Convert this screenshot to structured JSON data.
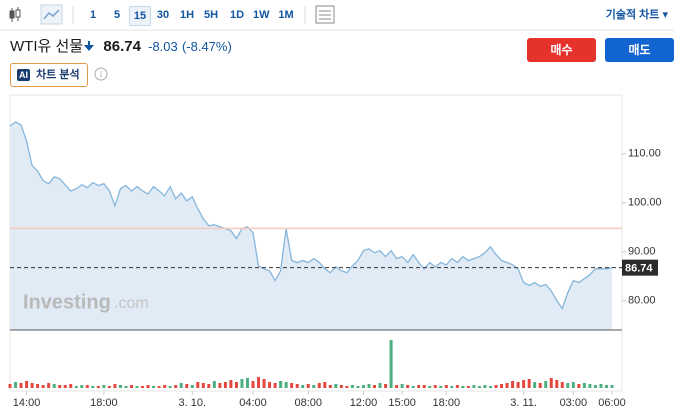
{
  "toolbar": {
    "intervals": [
      "1",
      "5",
      "15",
      "30",
      "1H",
      "5H",
      "1D",
      "1W",
      "1M"
    ],
    "selected": 2,
    "chart_mode": "기술적 차트"
  },
  "header": {
    "name": "WTI유 선물",
    "price": 86.74,
    "change": -8.03,
    "change_pct": "(-8.47%)",
    "buy": "매수",
    "sell": "매도",
    "ai_badge": "AI",
    "ai_label": "차트 분석"
  },
  "chart_data": {
    "type": "area",
    "watermark": [
      "Investing",
      ".com"
    ],
    "series": [
      {
        "color": "#86b6dc",
        "fill": "#e1ebf5",
        "values": [
          115.7,
          116.5,
          115.9,
          112.6,
          107.6,
          106.5,
          104.5,
          103.9,
          105.3,
          104.9,
          103.7,
          102.4,
          102.9,
          103.7,
          103.1,
          104.1,
          103.5,
          103.9,
          102.4,
          99.4,
          102.9,
          103.5,
          102.4,
          103.3,
          102.4,
          101.8,
          103.3,
          102.4,
          101.4,
          103.3,
          100.8,
          102.0,
          100.4,
          101.2,
          98.8,
          96.7,
          95.3,
          95.5,
          95.1,
          94.7,
          94.3,
          92.7,
          94.7,
          95.1,
          93.9,
          87.1,
          86.5,
          86.1,
          84.1,
          86.1,
          94.7,
          88.2,
          87.8,
          88.2,
          87.8,
          88.6,
          87.8,
          86.5,
          85.7,
          86.9,
          86.1,
          85.7,
          87.1,
          88.2,
          90.2,
          90.6,
          89.8,
          90.2,
          89.0,
          90.2,
          88.6,
          89.0,
          87.8,
          89.4,
          87.8,
          86.5,
          87.8,
          86.9,
          87.8,
          87.3,
          88.6,
          87.8,
          89.0,
          88.2,
          88.6,
          89.0,
          89.8,
          91.0,
          89.4,
          88.2,
          87.8,
          87.3,
          86.5,
          83.7,
          83.1,
          83.7,
          82.9,
          83.3,
          82.0,
          80.0,
          78.4,
          81.6,
          84.1,
          83.7,
          84.5,
          85.3,
          86.5,
          86.5,
          86.5,
          86.74
        ]
      }
    ],
    "reference_line": 94.77,
    "reference_color": "#f6c9bd",
    "volume": {
      "values": [
        4,
        6,
        5,
        7,
        5,
        4,
        3,
        5,
        4,
        3,
        3,
        4,
        2,
        3,
        3,
        2,
        2,
        3,
        2,
        4,
        3,
        2,
        3,
        2,
        2,
        3,
        2,
        2,
        3,
        2,
        3,
        5,
        4,
        3,
        6,
        5,
        4,
        7,
        5,
        6,
        8,
        6,
        9,
        10,
        7,
        11,
        9,
        6,
        5,
        7,
        6,
        5,
        4,
        3,
        4,
        3,
        5,
        6,
        3,
        4,
        3,
        2,
        3,
        2,
        3,
        4,
        3,
        5,
        4,
        48,
        3,
        4,
        3,
        2,
        3,
        3,
        2,
        3,
        2,
        3,
        2,
        3,
        2,
        2,
        3,
        2,
        3,
        2,
        3,
        4,
        5,
        7,
        6,
        8,
        9,
        6,
        5,
        7,
        10,
        8,
        6,
        5,
        6,
        4,
        5,
        4,
        3,
        4,
        3,
        3
      ],
      "ylim": [
        0,
        50
      ],
      "up_color": "#4caf7f",
      "down_color": "#e5483f"
    },
    "xlim": [
      0,
      109
    ],
    "xticks": [
      {
        "value": 3,
        "label": "14:00"
      },
      {
        "value": 17,
        "label": "18:00"
      },
      {
        "value": 33,
        "label": "3. 10."
      },
      {
        "value": 44,
        "label": "04:00"
      },
      {
        "value": 54,
        "label": "08:00"
      },
      {
        "value": 64,
        "label": "12:00"
      },
      {
        "value": 71,
        "label": "15:00"
      },
      {
        "value": 79,
        "label": "18:00"
      },
      {
        "value": 93,
        "label": "3. 11."
      },
      {
        "value": 102,
        "label": "03:00"
      },
      {
        "value": 109,
        "label": "06:00"
      }
    ],
    "ylim": [
      74,
      121
    ],
    "yticks": [
      {
        "value": 80,
        "label": "80.00"
      },
      {
        "value": 90,
        "label": "90.00"
      },
      {
        "value": 100,
        "label": "100.00"
      },
      {
        "value": 110,
        "label": "110.00"
      }
    ]
  }
}
